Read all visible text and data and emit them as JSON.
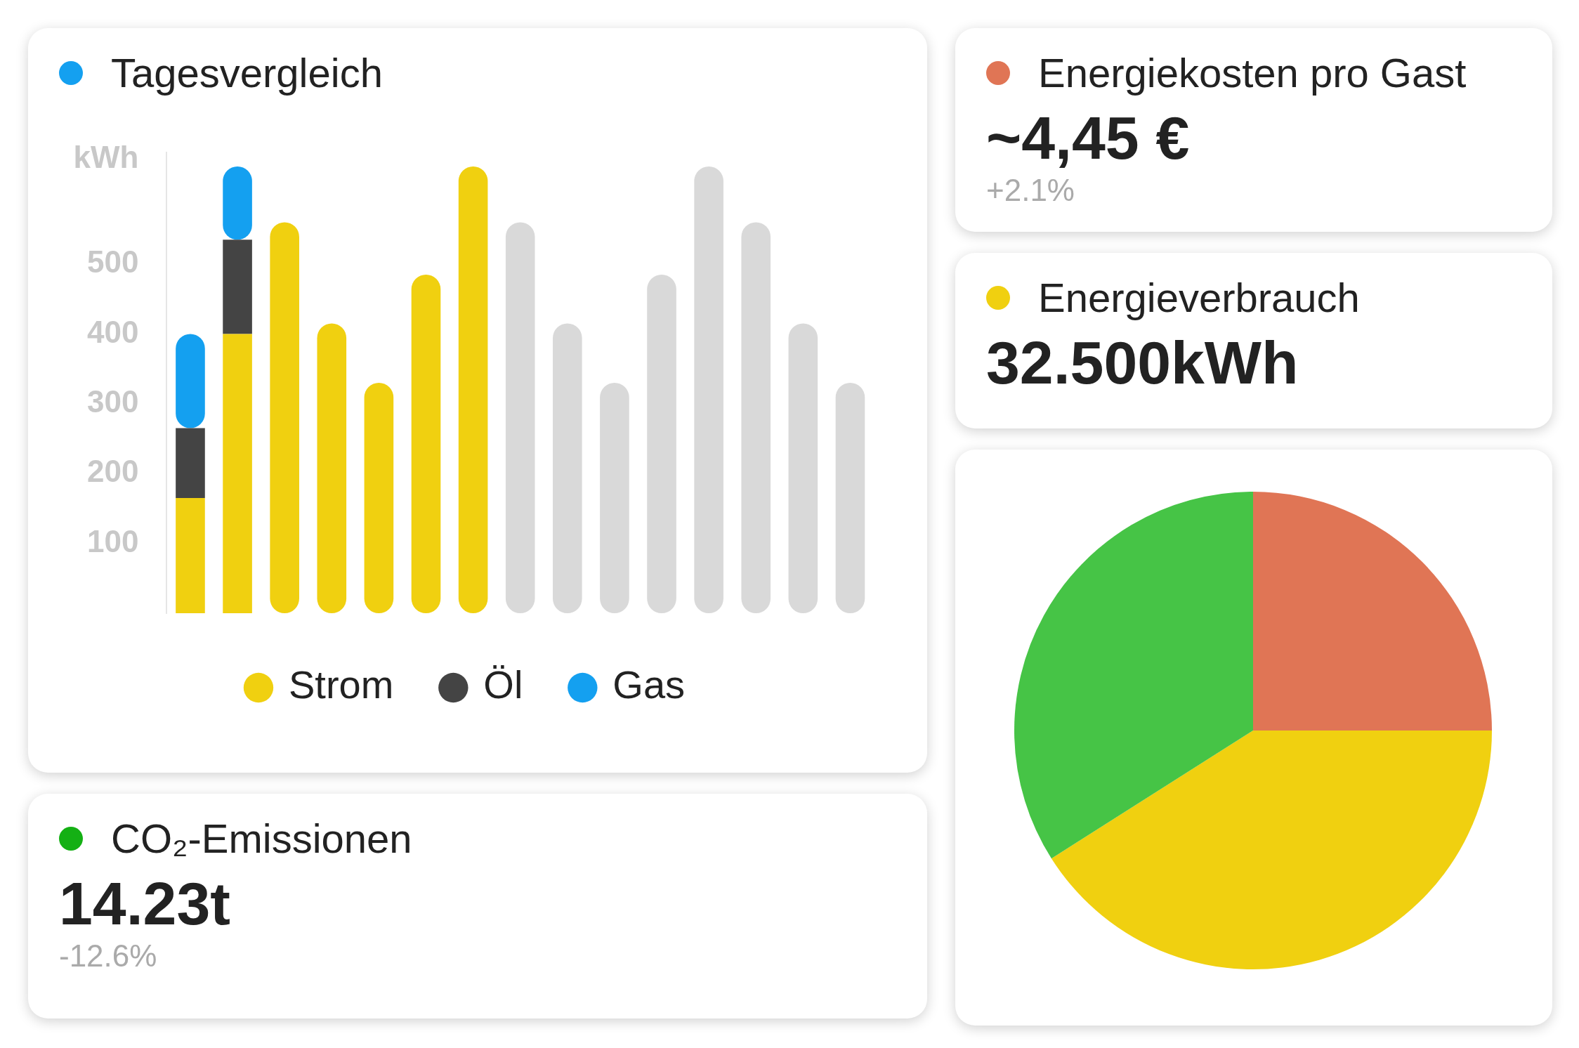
{
  "chart_data": [
    {
      "type": "bar",
      "title": "Tagesvergleich",
      "ylabel": "kWh",
      "categories": [
        null,
        null,
        null,
        null,
        null,
        null,
        null,
        null,
        null,
        null,
        null,
        null,
        null,
        null,
        null
      ],
      "stacked": true,
      "ylim": [
        0,
        660
      ],
      "yticks": [
        100,
        200,
        300,
        400,
        500
      ],
      "tick_labels": "y",
      "grid": false,
      "legend": "bottom",
      "series": [
        {
          "name": "Strom",
          "color": "#f0d010",
          "values": [
            165,
            400,
            560,
            415,
            330,
            485,
            640,
            null,
            null,
            null,
            null,
            null,
            null,
            null,
            null
          ]
        },
        {
          "name": "Öl",
          "color": "#444444",
          "values": [
            100,
            135,
            null,
            null,
            null,
            null,
            null,
            null,
            null,
            null,
            null,
            null,
            null,
            null,
            null
          ]
        },
        {
          "name": "Gas",
          "color": "#14a0f0",
          "values": [
            135,
            105,
            null,
            null,
            null,
            null,
            null,
            null,
            null,
            null,
            null,
            null,
            null,
            null,
            null
          ]
        },
        {
          "color": "#d9d9d9",
          "values": [
            null,
            null,
            null,
            null,
            null,
            null,
            null,
            560,
            415,
            330,
            485,
            640,
            560,
            415,
            330
          ]
        }
      ]
    },
    {
      "type": "other",
      "title": "Energiekosten pro Gast",
      "color": "#e07555",
      "annotations": [
        "~4,45 €",
        "+2.1%"
      ]
    },
    {
      "type": "other",
      "title": "Energieverbrauch",
      "color": "#f0d010",
      "annotations": [
        "32.500kWh"
      ]
    },
    {
      "type": "other",
      "title": "CO₂-Emissionen",
      "color": "#14b014",
      "annotations": [
        "14.23t",
        "-12.6%"
      ]
    },
    {
      "type": "pie",
      "categories": [
        null,
        null,
        null
      ],
      "values": [
        25,
        41,
        34
      ],
      "colors": [
        "#e07555",
        "#f0d010",
        "#46c446"
      ]
    }
  ]
}
